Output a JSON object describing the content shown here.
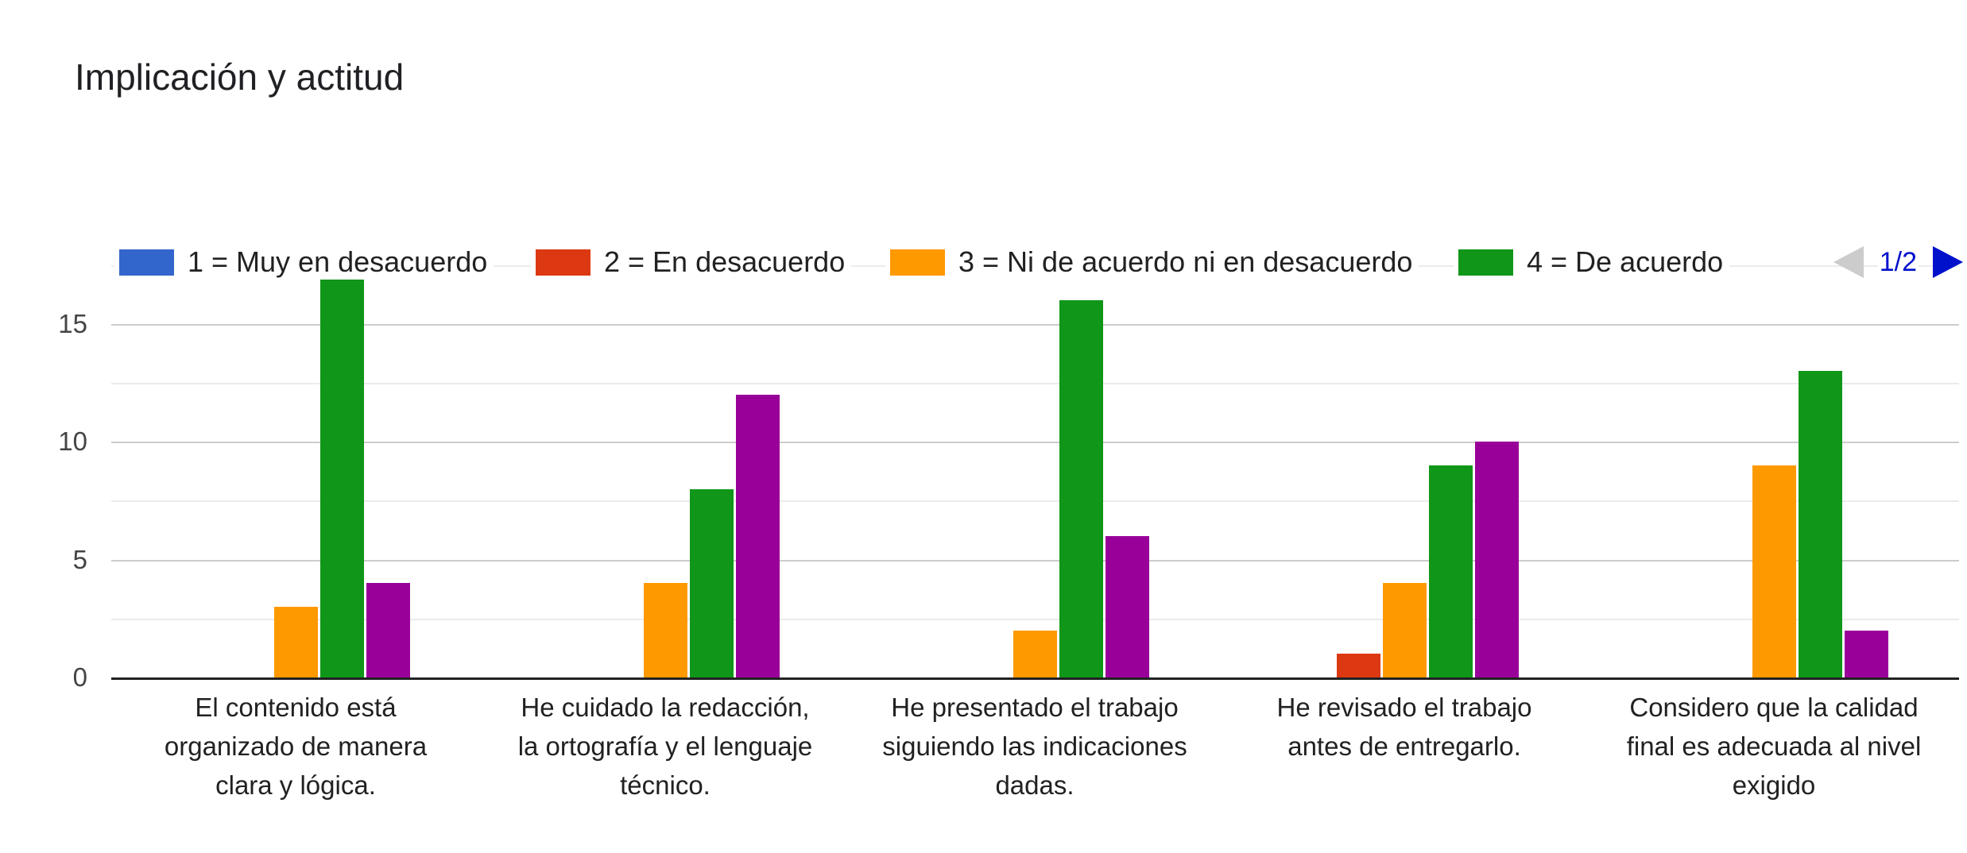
{
  "title": "Implicación y actitud",
  "legend": {
    "items": [
      {
        "label": "1 = Muy en desacuerdo",
        "color": "#3366CC"
      },
      {
        "label": "2 = En desacuerdo",
        "color": "#DC3912"
      },
      {
        "label": "3 = Ni de acuerdo ni en desacuerdo",
        "color": "#FF9900"
      },
      {
        "label": "4 = De acuerdo",
        "color": "#109618"
      }
    ],
    "pagination": {
      "page_label": "1/2",
      "prev_enabled": false,
      "next_enabled": true,
      "enabled_color": "#0011CC",
      "disabled_color": "#CCCCCC"
    }
  },
  "axis": {
    "yticks": [
      "0",
      "5",
      "10",
      "15"
    ],
    "x_labels": [
      [
        "El contenido está",
        "organizado de manera",
        "clara y lógica."
      ],
      [
        "He cuidado la redacción,",
        "la ortografía y el lenguaje",
        "técnico."
      ],
      [
        "He presentado el trabajo",
        "siguiendo las indicaciones",
        "dadas."
      ],
      [
        "He revisado el trabajo",
        "antes de entregarlo."
      ],
      [
        "Considero que la calidad",
        "final es adecuada al nivel",
        "exigido"
      ]
    ]
  },
  "chart_data": {
    "type": "bar",
    "title": "Implicación y actitud",
    "categories": [
      "El contenido está organizado de manera clara y lógica.",
      "He cuidado la redacción, la ortografía y el lenguaje técnico.",
      "He presentado el trabajo siguiendo las indicaciones dadas.",
      "He revisado el trabajo antes de entregarlo.",
      "Considero que la calidad final es adecuada al nivel exigido"
    ],
    "series": [
      {
        "name": "1 = Muy en desacuerdo",
        "color": "#3366CC",
        "values": [
          0,
          0,
          0,
          0,
          0
        ]
      },
      {
        "name": "2 = En desacuerdo",
        "color": "#DC3912",
        "values": [
          0,
          0,
          0,
          1,
          0
        ]
      },
      {
        "name": "3 = Ni de acuerdo ni en desacuerdo",
        "color": "#FF9900",
        "values": [
          3,
          4,
          2,
          4,
          9
        ]
      },
      {
        "name": "4 = De acuerdo",
        "color": "#109618",
        "values": [
          17,
          8,
          16,
          9,
          13
        ]
      },
      {
        "name": "",
        "color": "#990099",
        "values": [
          4,
          12,
          6,
          10,
          2
        ]
      }
    ],
    "yticks": [
      0,
      5,
      10,
      15
    ],
    "ylim": [
      0,
      17.6
    ],
    "gridlines": {
      "major": [
        5,
        10,
        15
      ],
      "minor": [
        2.5,
        7.5,
        12.5,
        17.5
      ]
    },
    "legend_position": "top",
    "legend_pages": 2,
    "colors": {
      "background": "#FFFFFF",
      "gridline_major": "#CCCCCC",
      "gridline_minor": "#EBEBEB",
      "baseline": "#212121"
    }
  }
}
